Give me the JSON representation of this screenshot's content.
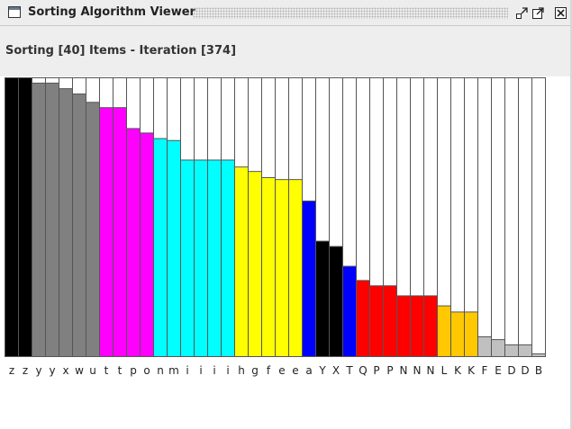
{
  "window": {
    "title": "Sorting Algorithm Viewer",
    "icons": [
      "window-icon",
      "minimize-icon",
      "maximize-icon",
      "close-icon"
    ]
  },
  "status": {
    "text": "Sorting [40] Items - Iteration [374]"
  },
  "chart_data": {
    "type": "bar",
    "title": "",
    "xlabel": "",
    "ylabel": "",
    "ylim": [
      0,
      1
    ],
    "categories": [
      "z",
      "z",
      "y",
      "y",
      "x",
      "w",
      "u",
      "t",
      "t",
      "p",
      "o",
      "n",
      "m",
      "i",
      "i",
      "i",
      "i",
      "h",
      "g",
      "f",
      "e",
      "e",
      "a",
      "Y",
      "X",
      "T",
      "Q",
      "P",
      "P",
      "N",
      "N",
      "N",
      "L",
      "K",
      "K",
      "F",
      "E",
      "D",
      "D",
      "B"
    ],
    "values": [
      1.0,
      1.0,
      0.981,
      0.981,
      0.961,
      0.942,
      0.912,
      0.893,
      0.893,
      0.818,
      0.802,
      0.782,
      0.775,
      0.705,
      0.705,
      0.705,
      0.705,
      0.68,
      0.664,
      0.642,
      0.635,
      0.635,
      0.558,
      0.414,
      0.395,
      0.324,
      0.273,
      0.254,
      0.254,
      0.218,
      0.218,
      0.218,
      0.182,
      0.16,
      0.16,
      0.071,
      0.061,
      0.042,
      0.042,
      0.01
    ],
    "colors": [
      "#000000",
      "#000000",
      "#808080",
      "#808080",
      "#808080",
      "#808080",
      "#808080",
      "#ff00ff",
      "#ff00ff",
      "#ff00ff",
      "#ff00ff",
      "#00ffff",
      "#00ffff",
      "#00ffff",
      "#00ffff",
      "#00ffff",
      "#00ffff",
      "#ffff00",
      "#ffff00",
      "#ffff00",
      "#ffff00",
      "#ffff00",
      "#0000ff",
      "#000000",
      "#000000",
      "#0000ff",
      "#ff0000",
      "#ff0000",
      "#ff0000",
      "#ff0000",
      "#ff0000",
      "#ff0000",
      "#ffc800",
      "#ffc800",
      "#ffc800",
      "#c0c0c0",
      "#c0c0c0",
      "#c0c0c0",
      "#c0c0c0",
      "#c0c0c0"
    ]
  }
}
